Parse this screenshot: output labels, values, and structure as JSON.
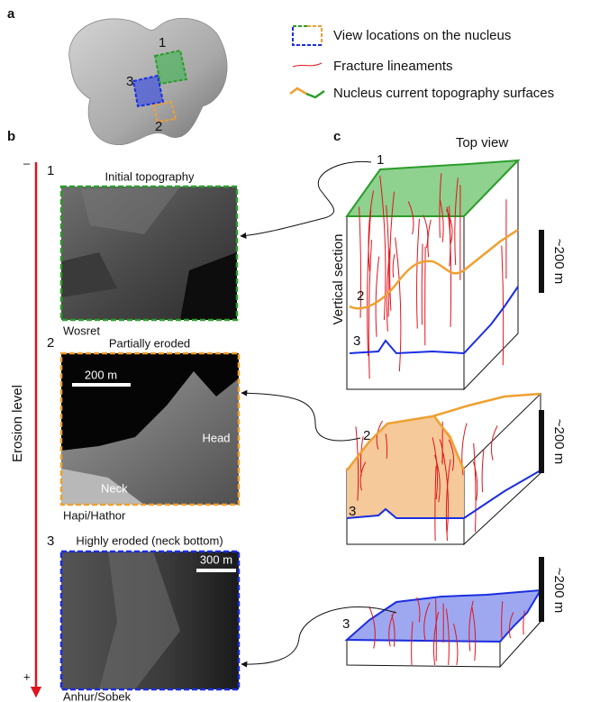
{
  "panel_a": {
    "label": "a",
    "nucleus_labels": [
      "1",
      "3",
      "2"
    ]
  },
  "legend": {
    "items": [
      "View locations on the nucleus",
      "Fracture lineaments",
      "Nucleus current topography surfaces"
    ]
  },
  "panel_b": {
    "label": "b",
    "axis": {
      "top": "–",
      "bottom": "+",
      "title": "Erosion level"
    },
    "views": [
      {
        "number": "1",
        "title": "Initial topography",
        "location": "Wosret"
      },
      {
        "number": "2",
        "title": "Partially eroded",
        "location": "Hapi/Hathor",
        "scale_bar": "200 m",
        "labels": [
          "Head",
          "Neck"
        ]
      },
      {
        "number": "3",
        "title": "Highly eroded (neck bottom)",
        "location": "Anhur/Sobek",
        "scale_bar": "300 m"
      }
    ]
  },
  "panel_c": {
    "label": "c",
    "top_view": "Top view",
    "vertical_section": "Vertical section",
    "blocks": [
      {
        "labels": [
          "1",
          "2",
          "3"
        ],
        "scale": "~200 m"
      },
      {
        "labels": [
          "2",
          "3"
        ],
        "scale": "~200 m"
      },
      {
        "labels": [
          "3"
        ],
        "scale": "~200 m"
      }
    ]
  }
}
